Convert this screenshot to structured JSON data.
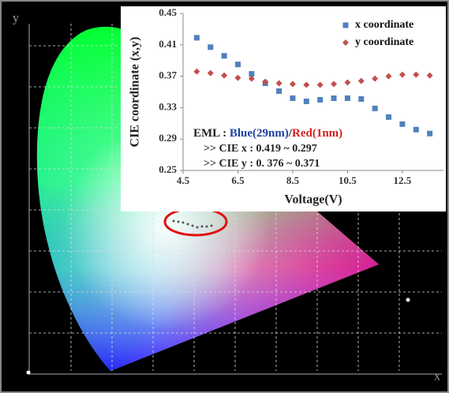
{
  "chart_data": {
    "type": "scatter",
    "x_label": "Voltage(V)",
    "y_label": "CIE coordinate (x,y)",
    "x": [
      5.0,
      5.5,
      6.0,
      6.5,
      7.0,
      7.5,
      8.0,
      8.5,
      9.0,
      9.5,
      10.0,
      10.5,
      11.0,
      11.5,
      12.0,
      12.5,
      13.0,
      13.5
    ],
    "series": [
      {
        "name": "x coordinate",
        "color": "#4f81bd",
        "marker": "square",
        "values": [
          0.419,
          0.407,
          0.396,
          0.385,
          0.373,
          0.361,
          0.351,
          0.342,
          0.338,
          0.34,
          0.342,
          0.342,
          0.341,
          0.329,
          0.318,
          0.309,
          0.302,
          0.297
        ]
      },
      {
        "name": "y coordinate",
        "color": "#c0504d",
        "marker": "diamond",
        "values": [
          0.376,
          0.374,
          0.371,
          0.368,
          0.367,
          0.363,
          0.361,
          0.36,
          0.359,
          0.359,
          0.36,
          0.362,
          0.364,
          0.367,
          0.37,
          0.372,
          0.372,
          0.371
        ]
      }
    ],
    "xlim": [
      4.5,
      14.0
    ],
    "xticks": [
      4.5,
      6.5,
      8.5,
      10.5,
      12.5
    ],
    "ylim": [
      0.25,
      0.45
    ],
    "yticks": [
      0.25,
      0.29,
      0.33,
      0.37,
      0.41,
      0.45
    ],
    "grid": false,
    "legend": "upper right",
    "annotation": {
      "segments": [
        {
          "text": "EML : ",
          "color": "#1f1f1f"
        },
        {
          "text": "Blue(29nm)",
          "color": "#1f3f9f"
        },
        {
          "text": "/",
          "color": "#1f1f1f"
        },
        {
          "text": "Red(1nm)",
          "color": "#d02020"
        }
      ],
      "lines": [
        ">> CIE x : 0.419 ~ 0.297",
        ">> CIE y : 0. 376 ~ 0.371"
      ]
    }
  },
  "cie_diagram": {
    "x_label": "x",
    "y_label": "y"
  }
}
